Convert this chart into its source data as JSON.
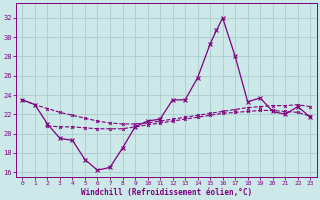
{
  "wc_x": [
    0,
    1,
    2,
    3,
    4,
    5,
    6,
    7,
    8,
    9,
    10,
    11,
    12,
    13,
    14,
    15,
    15.5,
    16,
    17,
    18,
    19,
    20,
    21,
    22,
    23
  ],
  "wc_y": [
    23.5,
    23.0,
    21.0,
    19.5,
    19.3,
    17.3,
    16.2,
    16.5,
    18.5,
    20.7,
    21.3,
    21.5,
    23.5,
    23.5,
    25.8,
    29.3,
    30.7,
    32.0,
    28.0,
    23.3,
    23.7,
    22.3,
    22.0,
    22.8,
    21.7
  ],
  "top_x": [
    0,
    1,
    2,
    3,
    4,
    5,
    6,
    7,
    8,
    9,
    10,
    11,
    12,
    13,
    14,
    15,
    16,
    17,
    18,
    19,
    20,
    21,
    22,
    23
  ],
  "top_y": [
    23.5,
    23.0,
    22.6,
    22.2,
    21.9,
    21.6,
    21.3,
    21.1,
    21.0,
    21.0,
    21.1,
    21.3,
    21.5,
    21.7,
    21.9,
    22.1,
    22.3,
    22.5,
    22.7,
    22.8,
    22.9,
    22.9,
    23.0,
    22.8
  ],
  "mid_x": [
    2,
    3,
    4,
    5,
    6,
    7,
    8,
    9,
    10,
    11,
    12,
    13,
    14,
    15,
    16,
    17,
    18,
    19,
    20,
    21,
    22,
    23
  ],
  "mid_y": [
    20.8,
    20.7,
    20.7,
    20.6,
    20.5,
    20.5,
    20.5,
    20.7,
    20.9,
    21.1,
    21.3,
    21.5,
    21.7,
    21.9,
    22.1,
    22.2,
    22.3,
    22.4,
    22.4,
    22.3,
    22.2,
    21.8
  ],
  "line_color": "#800080",
  "bg_color": "#cce8e8",
  "grid_color": "#aacccc",
  "xlabel": "Windchill (Refroidissement éolien,°C)",
  "ylim": [
    15.5,
    33.5
  ],
  "xlim": [
    -0.5,
    23.5
  ],
  "yticks": [
    16,
    18,
    20,
    22,
    24,
    26,
    28,
    30,
    32
  ],
  "xticks": [
    0,
    1,
    2,
    3,
    4,
    5,
    6,
    7,
    8,
    9,
    10,
    11,
    12,
    13,
    14,
    15,
    16,
    17,
    18,
    19,
    20,
    21,
    22,
    23
  ],
  "figsize": [
    3.2,
    2.0
  ],
  "dpi": 100
}
